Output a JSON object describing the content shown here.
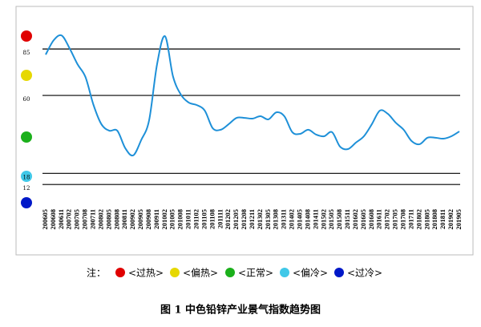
{
  "chart_data": {
    "type": "line",
    "title": "图 1 中色铅锌产业景气指数趋势图",
    "note": "注：",
    "zones": [
      "<过热>",
      "<偏热>",
      "<正常>",
      "<偏冷>",
      "<过冷>"
    ],
    "categories": [
      "200605",
      "200608",
      "200611",
      "200702",
      "200705",
      "200708",
      "200711",
      "200802",
      "200805",
      "200808",
      "200811",
      "200902",
      "200905",
      "200908",
      "200911",
      "201002",
      "201005",
      "201008",
      "201011",
      "201102",
      "201105",
      "201108",
      "201111",
      "201202",
      "201205",
      "201208",
      "201211",
      "201302",
      "201305",
      "201308",
      "201311",
      "201402",
      "201405",
      "201408",
      "201411",
      "201502",
      "201505",
      "201508",
      "201511",
      "201602",
      "201605",
      "201608",
      "201611",
      "201702",
      "201705",
      "201708",
      "201711",
      "201802",
      "201805",
      "201808",
      "201811",
      "201902",
      "201905"
    ],
    "values": [
      82,
      89.7,
      92.3,
      85.4,
      76.8,
      69.9,
      55,
      44.5,
      41,
      41,
      31.6,
      27.7,
      35.9,
      46.6,
      76.8,
      91.9,
      70.3,
      60.4,
      56.1,
      54.8,
      51.8,
      42.3,
      41.5,
      44.5,
      47.9,
      47.9,
      47.5,
      48.8,
      47.1,
      50.9,
      48.8,
      40.2,
      39.3,
      41.5,
      38.9,
      38,
      40.2,
      32.4,
      31.1,
      34.6,
      38,
      44.5,
      51.8,
      50.1,
      45.3,
      41.5,
      35.4,
      33.7,
      37.2,
      37.2,
      36.7,
      38,
      40.6
    ],
    "color": "#1e90d8",
    "ylim": [
      0,
      95
    ],
    "yticks": [
      12,
      18,
      60,
      85
    ],
    "grid": true
  }
}
